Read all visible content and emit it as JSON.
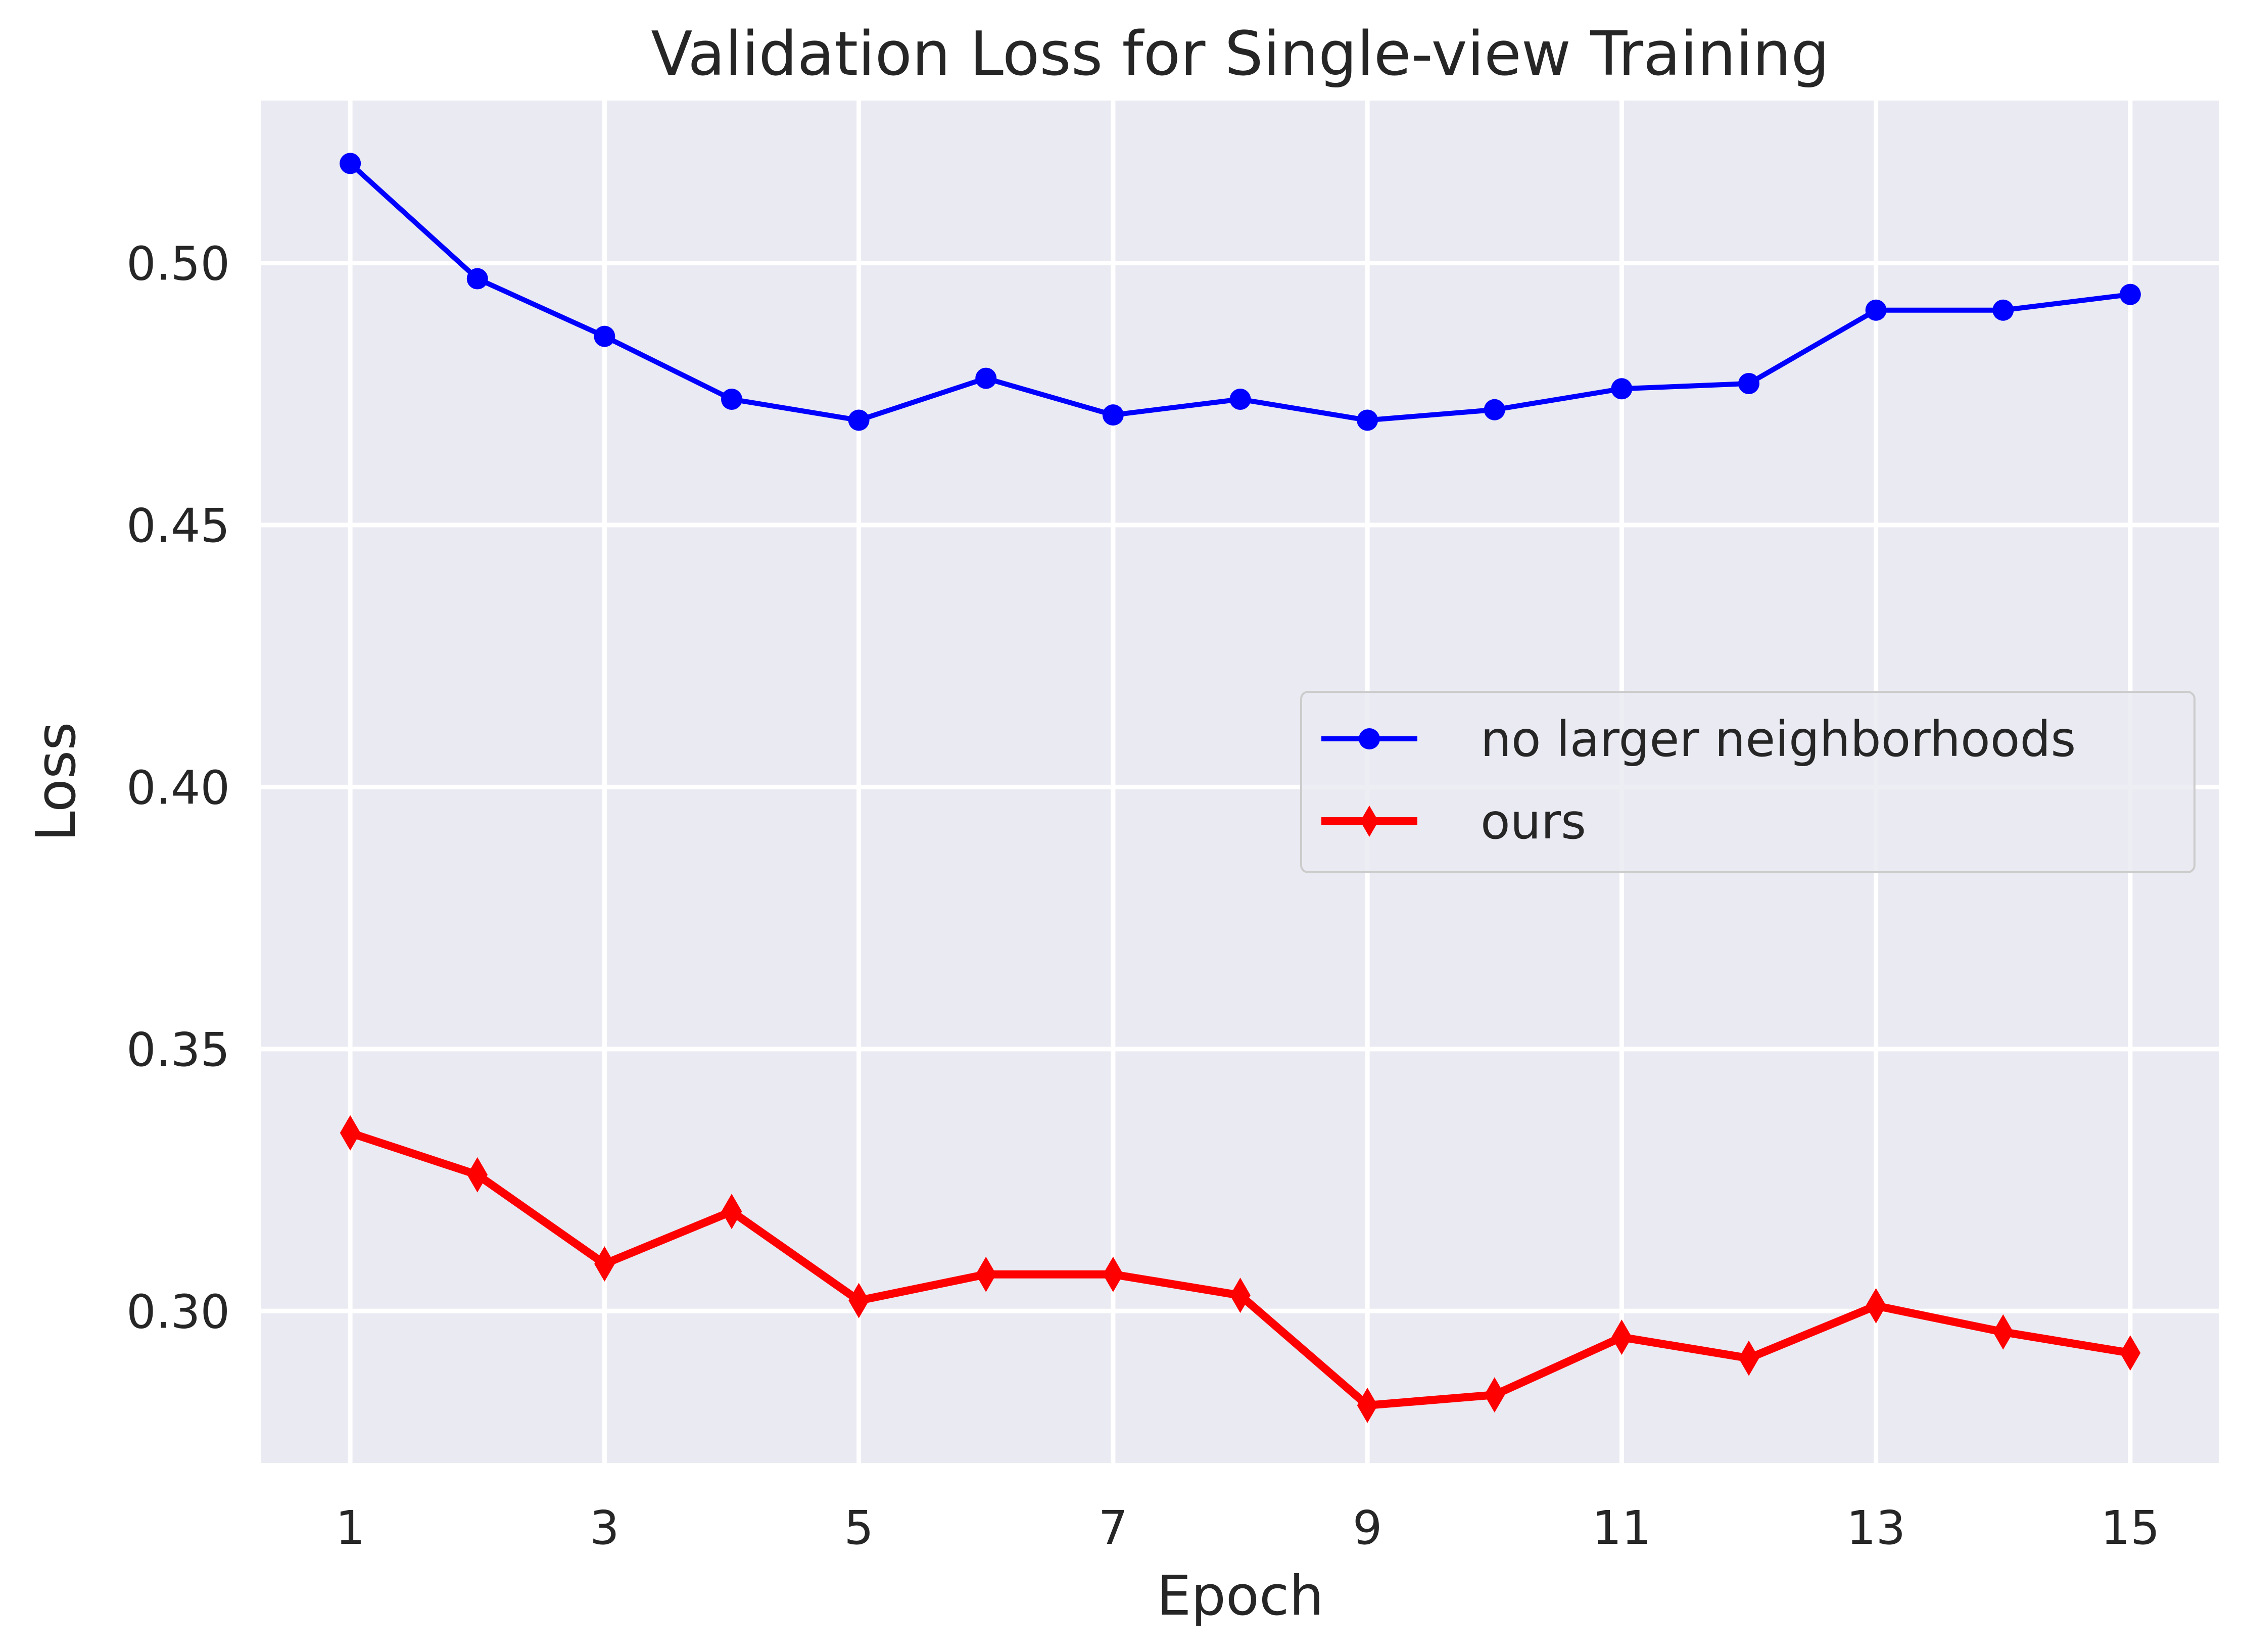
{
  "chart_data": {
    "type": "line",
    "title": "Validation Loss for Single-view Training",
    "xlabel": "Epoch",
    "ylabel": "Loss",
    "x": [
      1,
      2,
      3,
      4,
      5,
      6,
      7,
      8,
      9,
      10,
      11,
      12,
      13,
      14,
      15
    ],
    "xticks": [
      1,
      3,
      5,
      7,
      9,
      11,
      13,
      15
    ],
    "xtick_labels": [
      "1",
      "3",
      "5",
      "7",
      "9",
      "11",
      "13",
      "15"
    ],
    "yticks": [
      0.3,
      0.35,
      0.4,
      0.45,
      0.5
    ],
    "ytick_labels": [
      "0.30",
      "0.35",
      "0.40",
      "0.45",
      "0.50"
    ],
    "xlim": [
      0.3,
      15.7
    ],
    "ylim": [
      0.271,
      0.531
    ],
    "grid": true,
    "background": "#eaeaf2",
    "grid_color": "#ffffff",
    "legend_position": "center-right",
    "series": [
      {
        "name": "no larger neighborhoods",
        "color": "#0000ff",
        "marker": "circle",
        "values": [
          0.519,
          0.497,
          0.486,
          0.474,
          0.47,
          0.478,
          0.471,
          0.474,
          0.47,
          0.472,
          0.476,
          0.477,
          0.491,
          0.491,
          0.494
        ]
      },
      {
        "name": "ours",
        "color": "#ff0000",
        "marker": "thin_diamond",
        "values": [
          0.334,
          0.326,
          0.309,
          0.319,
          0.302,
          0.307,
          0.307,
          0.303,
          0.282,
          0.284,
          0.295,
          0.291,
          0.301,
          0.296,
          0.292
        ]
      }
    ]
  }
}
